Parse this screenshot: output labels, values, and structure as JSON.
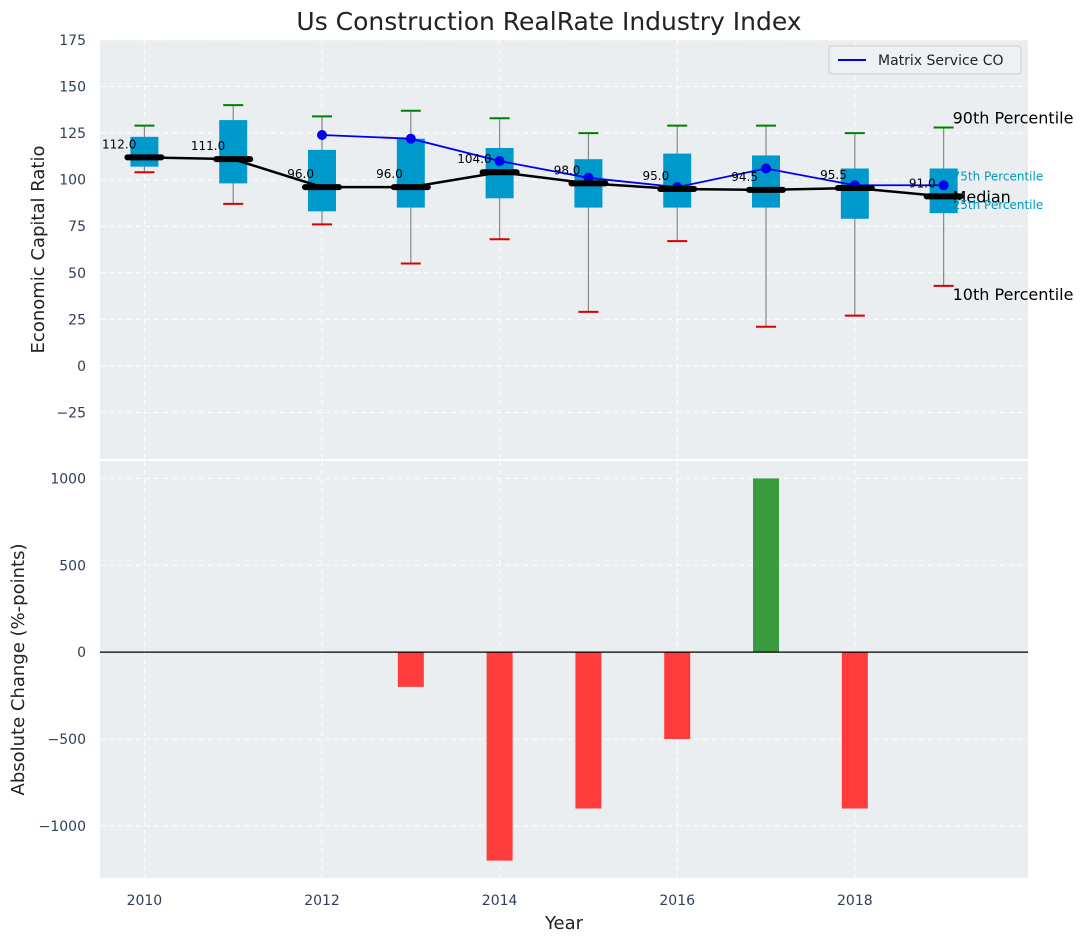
{
  "chart_data": {
    "type": "box",
    "title": "Us Construction RealRate Industry Index",
    "top": {
      "ylabel": "Economic Capital Ratio",
      "ylim": [
        -50,
        175
      ],
      "yticks": [
        -25,
        0,
        25,
        50,
        75,
        100,
        125,
        150,
        175
      ],
      "years": [
        2010,
        2011,
        2012,
        2013,
        2014,
        2015,
        2016,
        2017,
        2018,
        2019
      ],
      "p10": [
        104,
        87,
        76,
        55,
        68,
        29,
        67,
        21,
        27,
        43
      ],
      "p25": [
        107,
        98,
        83,
        85,
        90,
        85,
        85,
        85,
        79,
        82
      ],
      "median": [
        112.0,
        111.0,
        96.0,
        96.0,
        104.0,
        98.0,
        95.0,
        94.5,
        95.5,
        91.0
      ],
      "median_labels": [
        "112.0",
        "111.0",
        "96.0",
        "96.0",
        "104.0",
        "98.0",
        "95.0",
        "94.5",
        "95.5",
        "91.0"
      ],
      "p75": [
        123,
        132,
        116,
        122,
        117,
        111,
        114,
        113,
        106,
        106
      ],
      "p90": [
        129,
        140,
        134,
        137,
        133,
        125,
        129,
        129,
        125,
        128
      ],
      "company": {
        "name": "Matrix Service CO",
        "years": [
          2012,
          2013,
          2014,
          2015,
          2016,
          2017,
          2018,
          2019
        ],
        "values": [
          124,
          122,
          110,
          101,
          96,
          106,
          97,
          97
        ]
      },
      "annotations": {
        "p90": "90th Percentile",
        "p75": "75th Percentile",
        "median": "Median",
        "p25": "25th Percentile",
        "p10": "10th Percentile"
      },
      "legend_position": "top-right"
    },
    "bottom": {
      "ylabel": "Absolute Change (%-points)",
      "xlabel": "Year",
      "ylim": [
        -1300,
        1100
      ],
      "yticks": [
        -1000,
        -500,
        0,
        500,
        1000
      ],
      "years": [
        2013,
        2014,
        2015,
        2016,
        2017,
        2018
      ],
      "values": [
        -200,
        -1200,
        -900,
        -500,
        1000,
        -900
      ]
    },
    "xticks": [
      2010,
      2012,
      2014,
      2016,
      2018
    ],
    "xlim": [
      2009.5,
      2019.95
    ],
    "grid": true
  },
  "colors": {
    "panel_bg": "#eaeef0",
    "box": "#0099cc",
    "median": "#000000",
    "company": "#0000ee",
    "p90_cap": "#008000",
    "p10_cap": "#dd0000",
    "whisker": "#888888",
    "bar_pos": "#3a9a3f",
    "bar_neg": "#ff3c3c",
    "quartile_text": "#0099bb"
  }
}
